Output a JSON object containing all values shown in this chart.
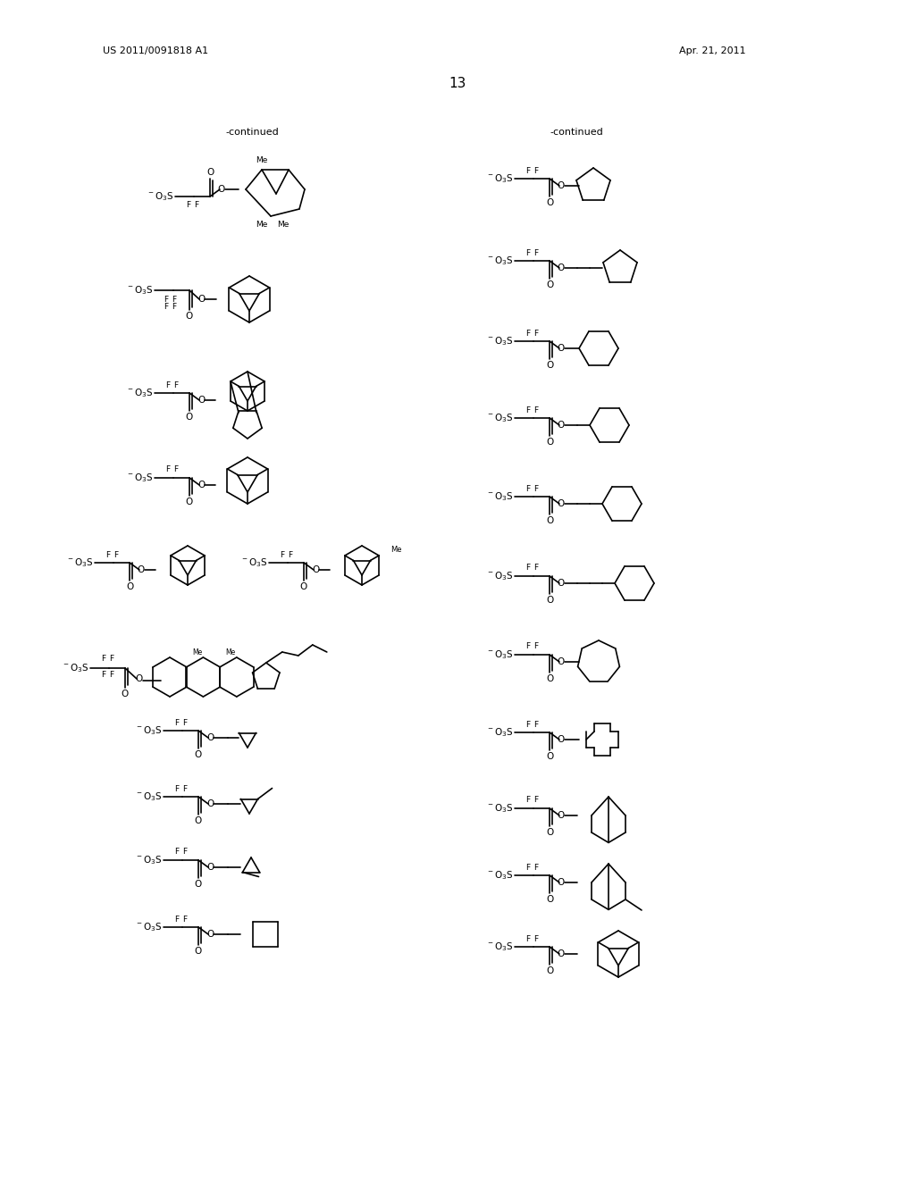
{
  "background_color": "#ffffff",
  "header_left": "US 2011/0091818 A1",
  "header_right": "Apr. 21, 2011",
  "page_number": "13",
  "continued_left": "-continued",
  "continued_right": "-continued"
}
